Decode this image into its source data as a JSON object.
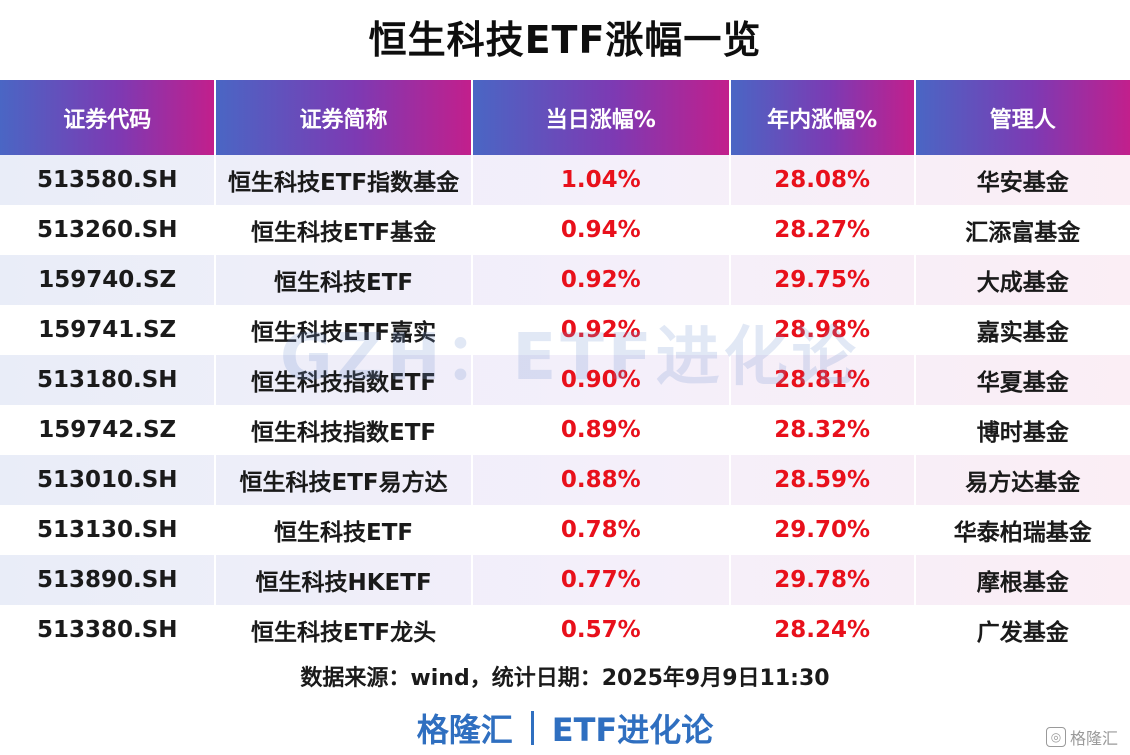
{
  "title": "恒生科技ETF涨幅一览",
  "chart_data": {
    "type": "table",
    "columns": [
      "证券代码",
      "证券简称",
      "当日涨幅%",
      "年内涨幅%",
      "管理人"
    ],
    "rows": [
      [
        "513580.SH",
        "恒生科技ETF指数基金",
        "1.04%",
        "28.08%",
        "华安基金"
      ],
      [
        "513260.SH",
        "恒生科技ETF基金",
        "0.94%",
        "28.27%",
        "汇添富基金"
      ],
      [
        "159740.SZ",
        "恒生科技ETF",
        "0.92%",
        "29.75%",
        "大成基金"
      ],
      [
        "159741.SZ",
        "恒生科技ETF嘉实",
        "0.92%",
        "28.98%",
        "嘉实基金"
      ],
      [
        "513180.SH",
        "恒生科技指数ETF",
        "0.90%",
        "28.81%",
        "华夏基金"
      ],
      [
        "159742.SZ",
        "恒生科技指数ETF",
        "0.89%",
        "28.32%",
        "博时基金"
      ],
      [
        "513010.SH",
        "恒生科技ETF易方达",
        "0.88%",
        "28.59%",
        "易方达基金"
      ],
      [
        "513130.SH",
        "恒生科技ETF",
        "0.78%",
        "29.70%",
        "华泰柏瑞基金"
      ],
      [
        "513890.SH",
        "恒生科技HKETF",
        "0.77%",
        "29.78%",
        "摩根基金"
      ],
      [
        "513380.SH",
        "恒生科技ETF龙头",
        "0.57%",
        "28.24%",
        "广发基金"
      ]
    ]
  },
  "watermark": "GZH：ETF进化论",
  "source": "数据来源：wind，统计日期：2025年9月9日11:30",
  "brand": {
    "left": "格隆汇",
    "right": "ETF进化论"
  },
  "corner_logo": {
    "icon": "gelonghui-logo-icon",
    "text": "格隆汇"
  },
  "colors": {
    "header_gradient_start": "#4a66c4",
    "header_gradient_end": "#c21f8c",
    "positive_red": "#e8101b",
    "brand_blue": "#2f6fc0"
  }
}
